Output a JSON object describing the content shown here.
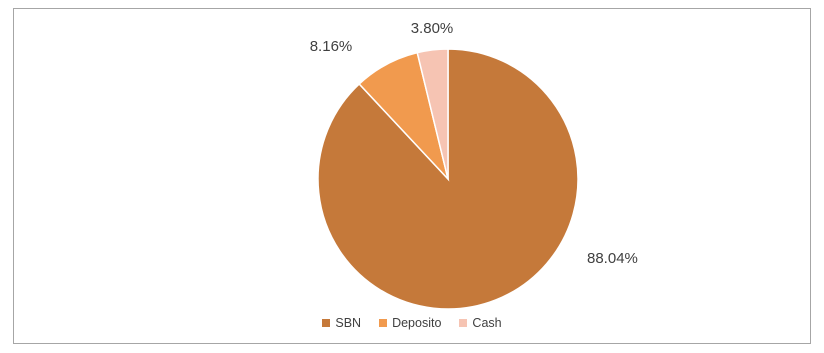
{
  "chart_data": {
    "type": "pie",
    "title": "",
    "slices": [
      {
        "label": "SBN",
        "value": 88.04,
        "display": "88.04%",
        "color": "#C5793A"
      },
      {
        "label": "Deposito",
        "value": 8.16,
        "display": "8.16%",
        "color": "#F19A4E"
      },
      {
        "label": "Cash",
        "value": 3.8,
        "display": "3.80%",
        "color": "#F6C4B3"
      }
    ],
    "legend_position": "bottom"
  }
}
